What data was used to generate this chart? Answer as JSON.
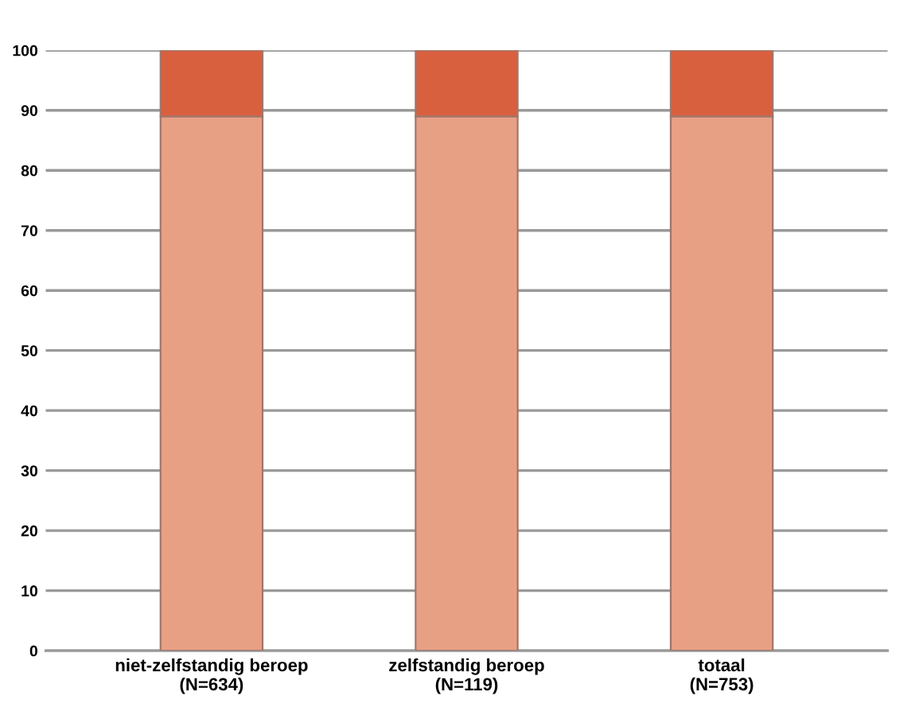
{
  "chart_data": {
    "type": "bar",
    "stacked": true,
    "categories": [
      "niet-zelfstandig beroep\n(N=634)",
      "zelfstandig beroep\n(N=119)",
      "totaal\n(N=753)"
    ],
    "series": [
      {
        "color": "#e8a085",
        "values": [
          89,
          89,
          89
        ]
      },
      {
        "color": "#d9603f",
        "values": [
          11,
          11,
          11
        ]
      }
    ],
    "ylim": [
      0,
      100
    ],
    "yticks": [
      0,
      10,
      20,
      30,
      40,
      50,
      60,
      70,
      80,
      90,
      100
    ],
    "grid": "y"
  }
}
